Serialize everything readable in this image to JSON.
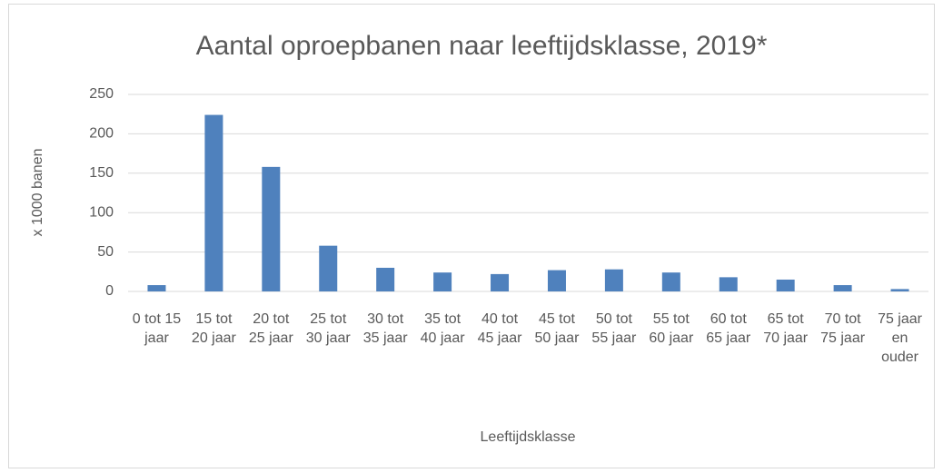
{
  "chart_data": {
    "type": "bar",
    "title": "Aantal oproepbanen naar leeftijdsklasse, 2019*",
    "y_label": "x 1000 banen",
    "x_label": "Leeftijdsklasse",
    "categories": [
      "0 tot 15 jaar",
      "15 tot 20 jaar",
      "20 tot 25 jaar",
      "25 tot 30 jaar",
      "30 tot 35 jaar",
      "35 tot 40 jaar",
      "40 tot 45 jaar",
      "45 tot 50 jaar",
      "50 tot 55 jaar",
      "55 tot 60 jaar",
      "60 tot 65 jaar",
      "65 tot 70 jaar",
      "70 tot 75 jaar",
      "75 jaar en ouder"
    ],
    "values": [
      8,
      224,
      158,
      58,
      30,
      24,
      22,
      27,
      28,
      24,
      18,
      15,
      8,
      3
    ],
    "color": "#4f81bd",
    "ylim": [
      0,
      250
    ],
    "yticks": [
      0,
      50,
      100,
      150,
      200,
      250
    ],
    "grid": true
  }
}
